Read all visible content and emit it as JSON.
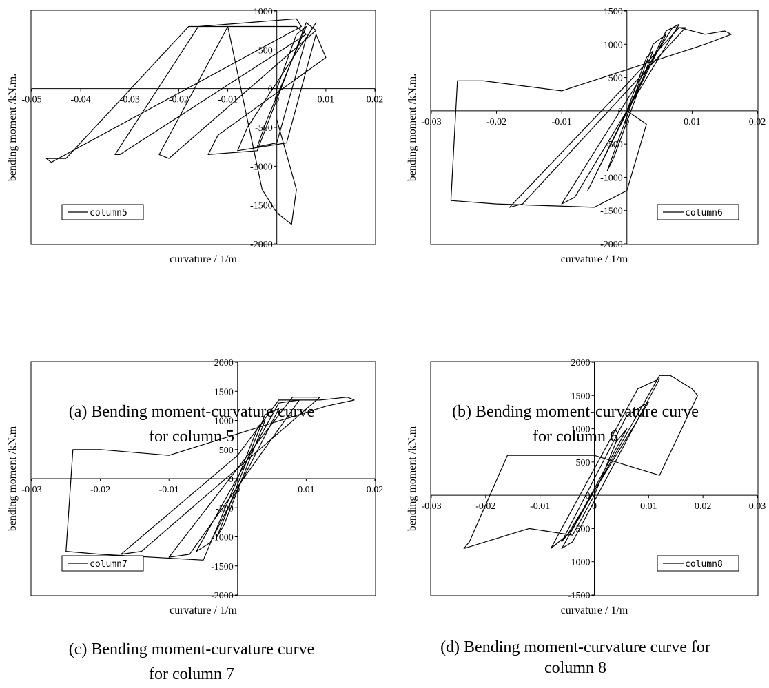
{
  "chart_data": [
    {
      "type": "line",
      "xlabel": "curvature / 1/m",
      "ylabel": "bending moment /kN.m.",
      "xlim": [
        -0.05,
        0.02
      ],
      "ylim": [
        -2000,
        1000
      ],
      "xticks": [
        "-0.05",
        "-0.04",
        "-0.03",
        "-0.02",
        "-0.01",
        "0",
        "0.01",
        "0.02"
      ],
      "yticks": [
        "1000",
        "500",
        "0",
        "-500",
        "-1000",
        "-1500",
        "-2000"
      ],
      "legend": "column5",
      "legend_position": "bottom-left",
      "caption_lines": [
        "(a) Bending moment-curvature curve",
        "for column 5"
      ],
      "series": [
        {
          "name": "column5",
          "x": [
            0.0,
            0.004,
            0.006,
            -0.002,
            -0.004,
            0.0,
            0.006,
            0.008,
            -0.006,
            -0.008,
            0.002,
            0.008,
            0.01,
            -0.012,
            -0.014,
            -0.004,
            0.006,
            0.008,
            -0.022,
            -0.024,
            -0.01,
            0.004,
            0.006,
            -0.032,
            -0.033,
            -0.016,
            0.004,
            0.005,
            -0.046,
            -0.047,
            -0.043,
            -0.018,
            -0.01,
            -0.003,
            0.0,
            0.003,
            0.004,
            0.0
          ],
          "y": [
            0,
            700,
            800,
            -400,
            -750,
            -700,
            650,
            850,
            -500,
            -800,
            -700,
            700,
            400,
            -600,
            -850,
            -800,
            850,
            750,
            -900,
            -850,
            800,
            800,
            700,
            -850,
            -850,
            800,
            900,
            800,
            -950,
            -900,
            -900,
            800,
            800,
            -1300,
            -1600,
            -1750,
            -1300,
            -400
          ]
        }
      ]
    },
    {
      "type": "line",
      "xlabel": "curvature / 1/m",
      "ylabel": "bending moment /kN.m.",
      "xlim": [
        -0.03,
        0.02
      ],
      "ylim": [
        -2000,
        1500
      ],
      "xticks": [
        "-0.03",
        "-0.02",
        "-0.01",
        "0",
        "0.01",
        "0.02"
      ],
      "yticks": [
        "1500",
        "1000",
        "500",
        "0",
        "-500",
        "-1000",
        "-1500",
        "-2000"
      ],
      "legend": "column6",
      "legend_position": "bottom-right",
      "caption_lines": [
        "(b) Bending moment-curvature curve",
        "for column 6"
      ],
      "series": [
        {
          "name": "column6",
          "x": [
            0.0,
            0.003,
            0.004,
            -0.002,
            -0.003,
            0.004,
            0.006,
            -0.005,
            -0.006,
            0.006,
            0.008,
            -0.008,
            -0.01,
            0.007,
            0.009,
            -0.016,
            -0.018,
            0.0,
            0.008,
            0.012,
            0.015,
            0.016,
            0.012,
            -0.01,
            -0.022,
            -0.024,
            -0.026,
            -0.027,
            -0.02,
            -0.005,
            0.0,
            0.003,
            0.0
          ],
          "y": [
            0,
            800,
            900,
            -700,
            -900,
            1000,
            1150,
            -1000,
            -1200,
            1200,
            1300,
            -1300,
            -1400,
            1250,
            1250,
            -1400,
            -1450,
            400,
            1250,
            1150,
            1200,
            1150,
            1000,
            300,
            450,
            450,
            450,
            -1350,
            -1400,
            -1450,
            -1200,
            -200,
            0
          ]
        }
      ]
    },
    {
      "type": "line",
      "xlabel": "curvature / 1/m",
      "ylabel": "bending moment /kN.m",
      "xlim": [
        -0.03,
        0.02
      ],
      "ylim": [
        -2000,
        2000
      ],
      "xticks": [
        "-0.03",
        "-0.02",
        "-0.01",
        "0",
        "0.01",
        "0.02"
      ],
      "yticks": [
        "2000",
        "1500",
        "1000",
        "500",
        "0",
        "-500",
        "-1000",
        "-1500",
        "-2000"
      ],
      "legend": "column7",
      "legend_position": "bottom-left",
      "caption_lines": [
        "(c) Bending moment-curvature curve",
        "for column 7"
      ],
      "series": [
        {
          "name": "column7",
          "x": [
            0.0,
            0.003,
            0.004,
            -0.002,
            -0.003,
            0.004,
            0.006,
            -0.004,
            -0.006,
            0.006,
            0.009,
            -0.007,
            -0.01,
            0.008,
            0.012,
            -0.014,
            -0.017,
            0.0,
            0.006,
            0.012,
            0.016,
            0.017,
            0.013,
            -0.01,
            -0.02,
            -0.024,
            -0.025,
            -0.02,
            -0.005,
            0.0
          ],
          "y": [
            0,
            900,
            1000,
            -800,
            -1000,
            1100,
            1200,
            -1100,
            -1250,
            1300,
            1350,
            -1300,
            -1350,
            1400,
            1400,
            -1250,
            -1300,
            400,
            1350,
            1350,
            1400,
            1350,
            1250,
            400,
            500,
            500,
            -1250,
            -1300,
            -1400,
            0
          ]
        }
      ]
    },
    {
      "type": "line",
      "xlabel": "curvature / 1/m",
      "ylabel": "bending moment /kN.m",
      "xlim": [
        -0.03,
        0.03
      ],
      "ylim": [
        -1500,
        2000
      ],
      "xticks": [
        "-0.03",
        "-0.02",
        "-0.01",
        "0",
        "0.01",
        "0.02",
        "0.03"
      ],
      "yticks": [
        "2000",
        "1500",
        "1000",
        "500",
        "0",
        "-500",
        "-1000",
        "-1500"
      ],
      "legend": "column8",
      "legend_position": "bottom-right",
      "caption_lines": [
        "(d) Bending moment-curvature curve for",
        "column 8"
      ],
      "series": [
        {
          "name": "column8",
          "x": [
            0.0,
            0.004,
            0.006,
            -0.004,
            -0.006,
            0.006,
            0.01,
            -0.005,
            -0.008,
            0.008,
            0.012,
            -0.004,
            -0.006,
            0.012,
            0.014,
            0.018,
            0.019,
            0.012,
            0.0,
            -0.012,
            -0.016,
            -0.023,
            -0.024,
            -0.012,
            -0.004,
            0.0
          ],
          "y": [
            0,
            800,
            1000,
            -500,
            -700,
            1200,
            1400,
            -600,
            -800,
            1600,
            1750,
            -700,
            -800,
            1800,
            1800,
            1600,
            1500,
            300,
            600,
            600,
            600,
            -700,
            -800,
            -500,
            -600,
            0
          ]
        }
      ]
    }
  ]
}
